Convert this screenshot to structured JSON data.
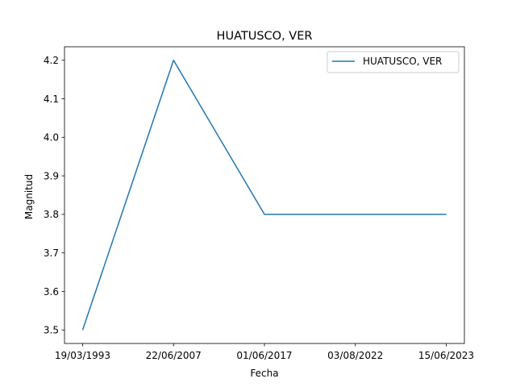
{
  "chart_data": {
    "type": "line",
    "title": "HUATUSCO, VER",
    "xlabel": "Fecha",
    "ylabel": "Magnitud",
    "categories": [
      "19/03/1993",
      "22/06/2007",
      "01/06/2017",
      "03/08/2022",
      "15/06/2023"
    ],
    "series": [
      {
        "name": "HUATUSCO, VER",
        "values": [
          3.5,
          4.2,
          3.8,
          3.8,
          3.8
        ],
        "color": "#1f77b4"
      }
    ],
    "yticks": [
      3.5,
      3.6,
      3.7,
      3.8,
      3.9,
      4.0,
      4.1,
      4.2
    ],
    "ylim": [
      3.465,
      4.235
    ],
    "grid": false,
    "legend_position": "upper right"
  }
}
